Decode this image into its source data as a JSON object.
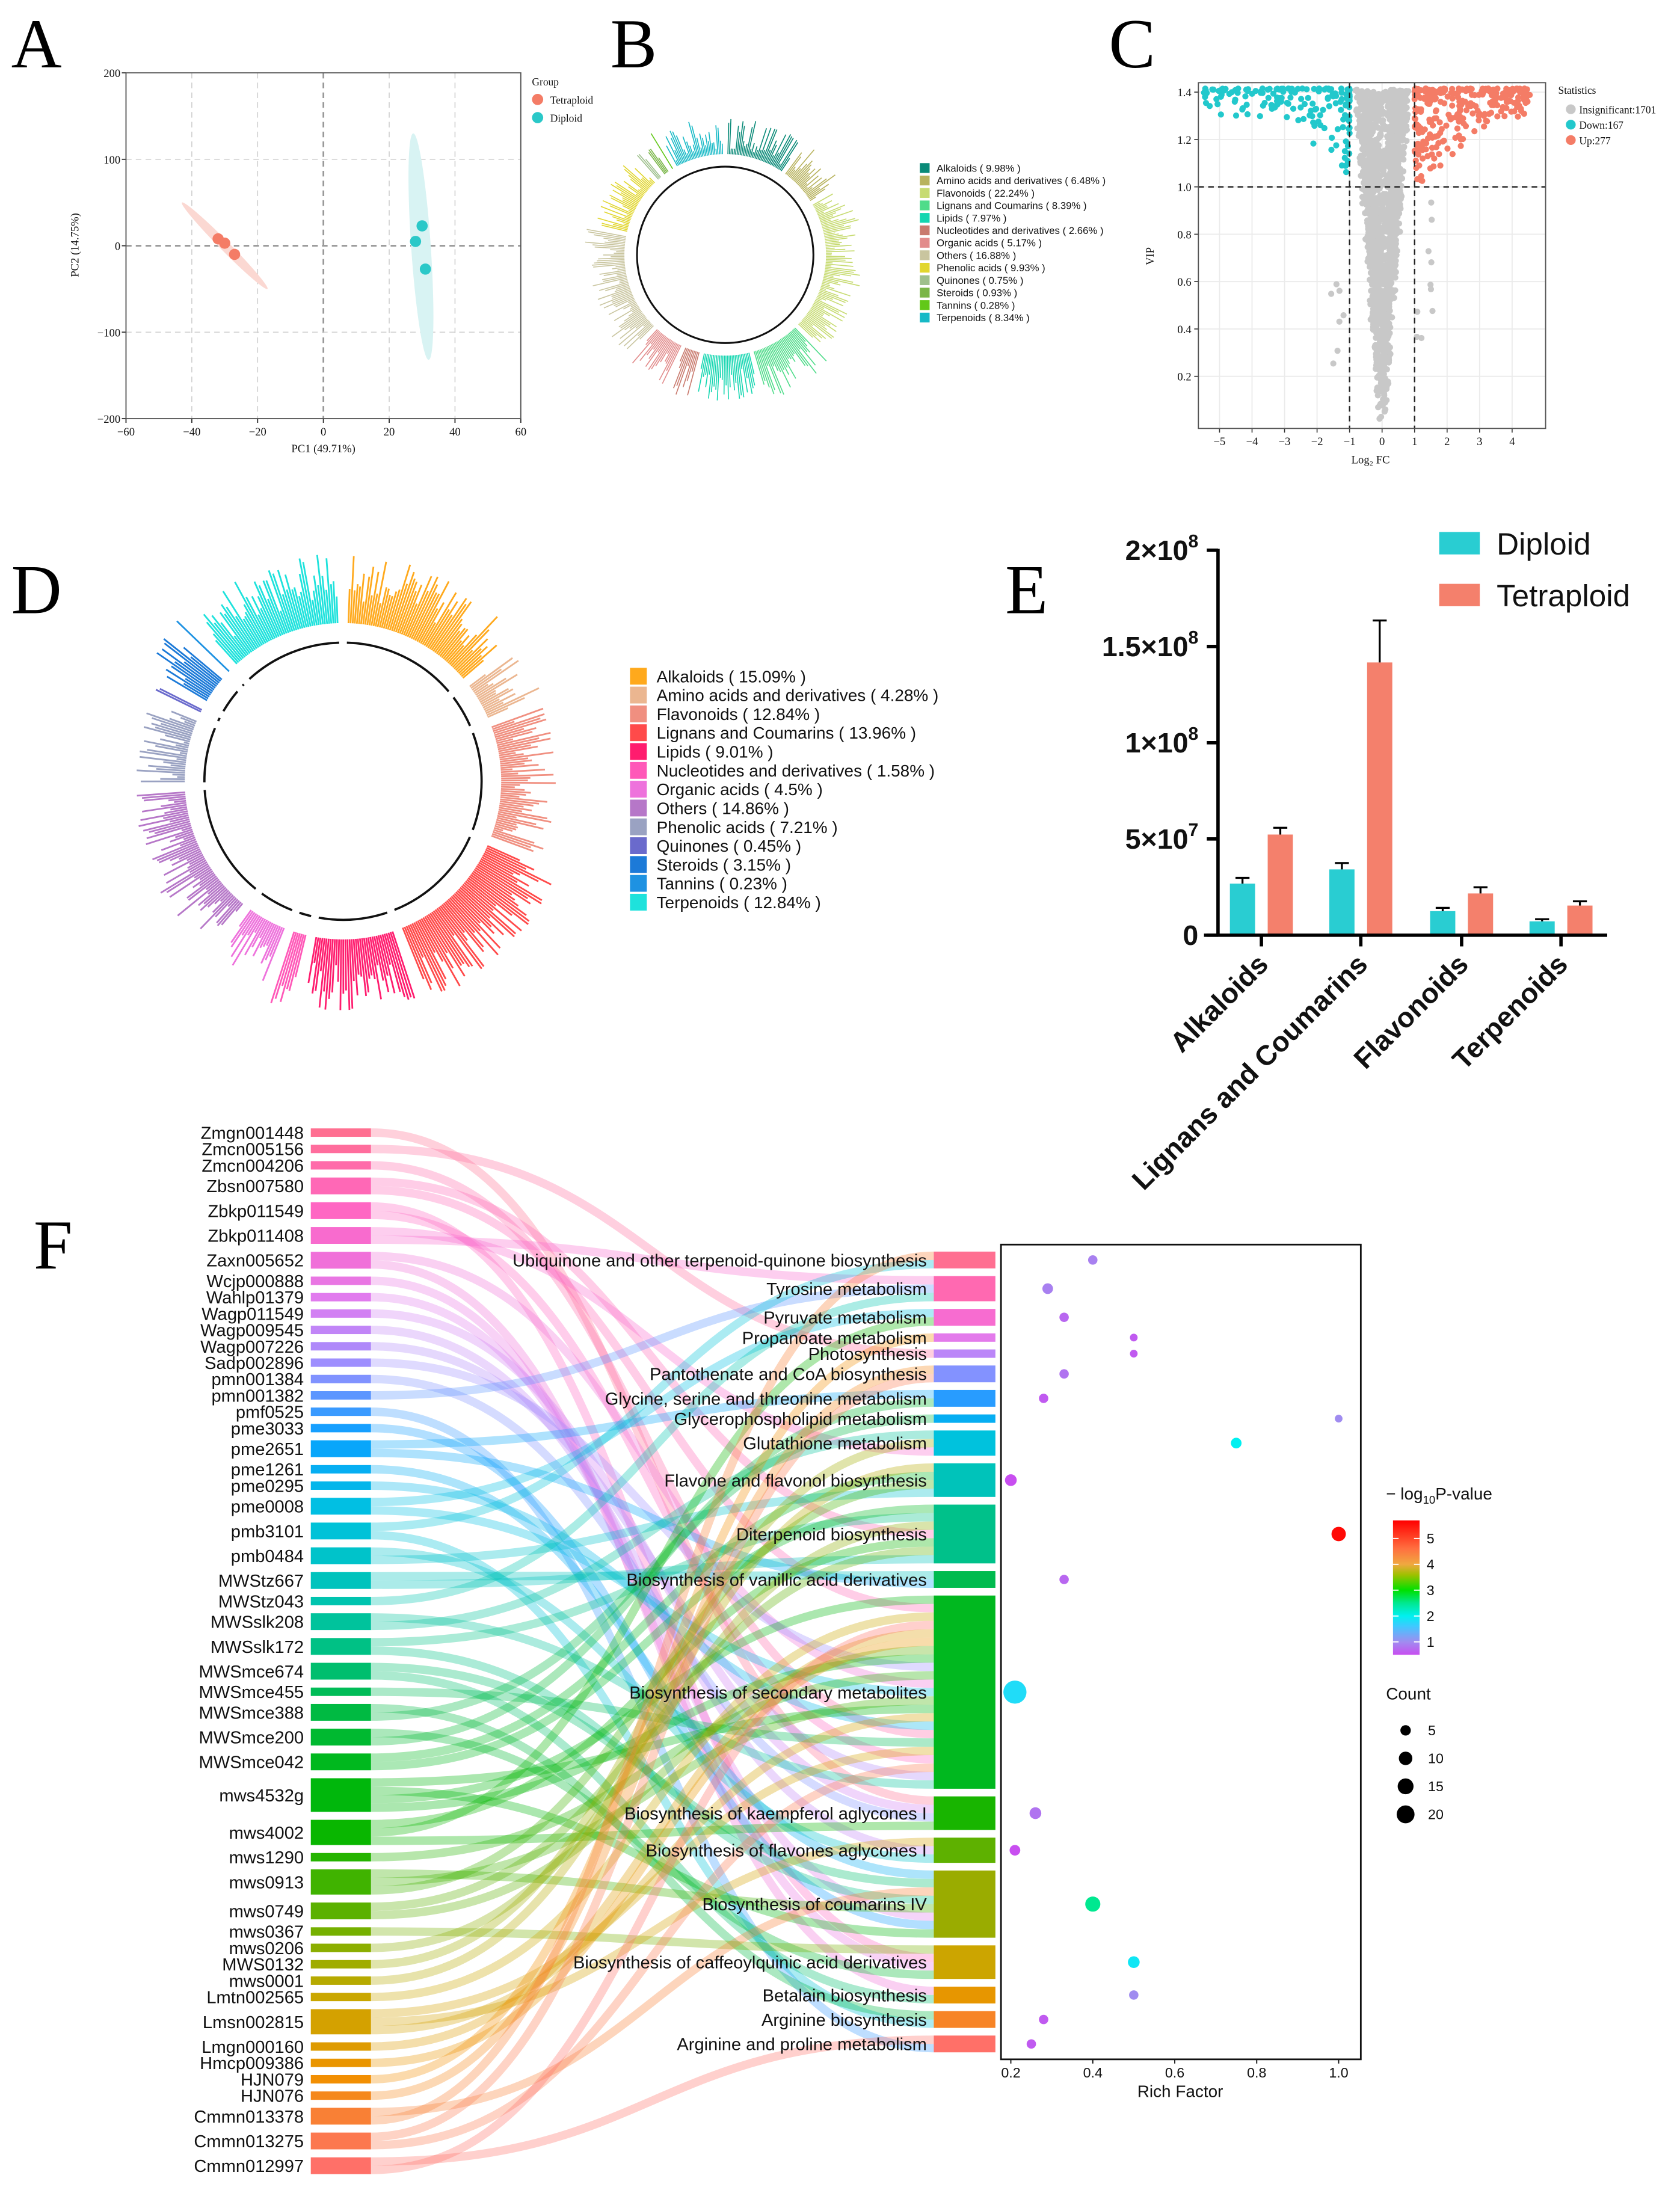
{
  "panels": {
    "a": "A",
    "b": "B",
    "c": "C",
    "d": "D",
    "e": "E",
    "f": "F"
  },
  "chart_data": [
    {
      "type": "scatter",
      "title": "",
      "xlabel": "PC1 (49.71%)",
      "ylabel": "PC2 (14.75%)",
      "xlim": [
        -60,
        60
      ],
      "ylim": [
        -200,
        200
      ],
      "xticks": [
        -60,
        -40,
        -20,
        0,
        20,
        40,
        60
      ],
      "xtick_labels": [
        "−60",
        "−40",
        "−20",
        "0",
        "20",
        "40",
        "60"
      ],
      "yticks": [
        200,
        100,
        0,
        -100,
        -200
      ],
      "ytick_labels": [
        "200",
        "100",
        "0",
        "−100",
        "−200"
      ],
      "grid": true,
      "legend_title": "Group",
      "legend_placement": "right",
      "series": [
        {
          "name": "Tetraploid",
          "color": "#f47c66",
          "points": [
            [
              -32,
              8
            ],
            [
              -30,
              3
            ],
            [
              -27,
              -10
            ]
          ]
        },
        {
          "name": "Diploid",
          "color": "#2ac8c8",
          "points": [
            [
              30,
              23
            ],
            [
              28,
              5
            ],
            [
              31,
              -27
            ]
          ]
        }
      ]
    },
    {
      "type": "bar",
      "subtype": "circular",
      "categories": [
        "Alkaloids",
        "Amino acids and derivatives",
        "Flavonoids",
        "Lignans and Coumarins",
        "Lipids",
        "Nucleotides and derivatives",
        "Organic acids",
        "Others",
        "Phenolic acids",
        "Quinones",
        "Steroids",
        "Tannins",
        "Terpenoids"
      ],
      "values": [
        9.98,
        6.48,
        22.24,
        8.39,
        7.97,
        2.66,
        5.17,
        16.88,
        9.93,
        0.75,
        0.93,
        0.28,
        8.34
      ],
      "labels": [
        "Alkaloids  ( 9.98% )",
        "Amino acids and derivatives  ( 6.48% )",
        "Flavonoids  ( 22.24% )",
        "Lignans and Coumarins  ( 8.39% )",
        "Lipids  ( 7.97% )",
        "Nucleotides and derivatives  ( 2.66% )",
        "Organic acids  ( 5.17% )",
        "Others  ( 16.88% )",
        "Phenolic acids  ( 9.93% )",
        "Quinones  ( 0.75% )",
        "Steroids  ( 0.93% )",
        "Tannins  ( 0.28% )",
        "Terpenoids  ( 8.34% )"
      ],
      "colors": [
        "#0a8a78",
        "#b8b35e",
        "#c7db72",
        "#4fdc8a",
        "#14d6b0",
        "#c97a6e",
        "#e28c8c",
        "#c9c59f",
        "#e1d62e",
        "#9ec08c",
        "#7ab648",
        "#62c818",
        "#16b9c6"
      ],
      "legend_placement": "right"
    },
    {
      "type": "scatter",
      "subtype": "volcano",
      "xlabel": "Log₂ FC",
      "ylabel": "VIP",
      "xlim": [
        -5.65,
        5.03
      ],
      "ylim": [
        -0.02,
        1.44
      ],
      "xticks": [
        -5,
        -4,
        -3,
        -2,
        -1,
        0,
        1,
        2,
        3,
        4
      ],
      "xtick_labels": [
        "−5",
        "−4",
        "−3",
        "−2",
        "−1",
        "0",
        "1",
        "2",
        "3",
        "4"
      ],
      "yticks": [
        0.2,
        0.4,
        0.6,
        0.8,
        1.0,
        1.2,
        1.4
      ],
      "ytick_labels": [
        "0.2",
        "0.4",
        "0.6",
        "0.8",
        "1.0",
        "1.2",
        "1.4"
      ],
      "thresholds": {
        "log2fc": [
          -1,
          1
        ],
        "vip": 1.0
      },
      "grid": true,
      "legend_title": "Statistics",
      "legend_placement": "right",
      "series": [
        {
          "name": "Insignificant",
          "label": "Insignificant:1701",
          "count": 1701,
          "color": "#c8c8c8"
        },
        {
          "name": "Down",
          "label": "Down:167",
          "count": 167,
          "color": "#22c8cc"
        },
        {
          "name": "Up",
          "label": "Up:277",
          "count": 277,
          "color": "#f47c66"
        }
      ]
    },
    {
      "type": "bar",
      "subtype": "circular",
      "categories": [
        "Alkaloids",
        "Amino acids and derivatives",
        "Flavonoids",
        "Lignans and Coumarins",
        "Lipids",
        "Nucleotides and derivatives",
        "Organic acids",
        "Others",
        "Phenolic acids",
        "Quinones",
        "Steroids",
        "Tannins",
        "Terpenoids"
      ],
      "values": [
        15.09,
        4.28,
        12.84,
        13.96,
        9.01,
        1.58,
        4.5,
        14.86,
        7.21,
        0.45,
        3.15,
        0.23,
        12.84
      ],
      "labels": [
        "Alkaloids  ( 15.09% )",
        "Amino acids and derivatives  ( 4.28% )",
        "Flavonoids  ( 12.84% )",
        "Lignans and Coumarins  ( 13.96% )",
        "Lipids  ( 9.01% )",
        "Nucleotides and derivatives  ( 1.58% )",
        "Organic acids  ( 4.5% )",
        "Others  ( 14.86% )",
        "Phenolic acids  ( 7.21% )",
        "Quinones  ( 0.45% )",
        "Steroids  ( 3.15% )",
        "Tannins  ( 0.23% )",
        "Terpenoids  ( 12.84% )"
      ],
      "colors": [
        "#ffa91c",
        "#ebb690",
        "#f08f80",
        "#ff4a4a",
        "#ff1c6e",
        "#ff58b8",
        "#ee72dc",
        "#b677c8",
        "#9aa2c2",
        "#6a6acc",
        "#1c7ad8",
        "#1e92e2",
        "#1ee2dc"
      ],
      "legend_placement": "right"
    },
    {
      "type": "bar",
      "categories": [
        "Alkaloids",
        "Lignans and Coumarins",
        "Flavonoids",
        "Terpenoids"
      ],
      "series": [
        {
          "name": "Diploid",
          "color": "#29cdd2",
          "values": [
            26800000,
            34200000,
            12500000,
            7200000
          ],
          "errors": [
            3000000,
            3300000,
            1700000,
            1100000
          ]
        },
        {
          "name": "Tetraploid",
          "color": "#f4806c",
          "values": [
            52300000,
            141700000,
            21700000,
            15400000
          ],
          "errors": [
            3500000,
            21800000,
            3200000,
            2200000
          ]
        }
      ],
      "ylim": [
        0,
        200000000
      ],
      "yticks": [
        0,
        50000000,
        100000000,
        150000000,
        200000000
      ],
      "ytick_labels": [
        {
          "base": "0",
          "exp": ""
        },
        {
          "base": "5×10",
          "exp": "7"
        },
        {
          "base": "1×10",
          "exp": "8"
        },
        {
          "base": "1.5×10",
          "exp": "8"
        },
        {
          "base": "2×10",
          "exp": "8"
        }
      ],
      "xlabel": "",
      "ylabel": "",
      "legend_placement": "top-right"
    },
    {
      "type": "scatter",
      "subtype": "sankey-bubble",
      "xlabel": "Rich Factor",
      "xlim": [
        0.176,
        1.054
      ],
      "xticks": [
        0.2,
        0.4,
        0.6,
        0.8,
        1.0
      ],
      "xtick_labels": [
        "0.2",
        "0.4",
        "0.6",
        "0.8",
        "1.0"
      ],
      "color_legend": {
        "prefix": "− log",
        "sub": "10",
        "suffix": "P-value",
        "ticks": [
          1,
          2,
          3,
          4,
          5
        ],
        "tick_labels": [
          "1",
          "2",
          "3",
          "4",
          "5"
        ],
        "range": [
          0.5,
          5.7
        ],
        "stops": [
          [
            0.5,
            "#c84ef0"
          ],
          [
            1.0,
            "#a08cf0"
          ],
          [
            1.6,
            "#40c8ff"
          ],
          [
            2.0,
            "#00f0f0"
          ],
          [
            2.5,
            "#00e890"
          ],
          [
            3.0,
            "#00e000"
          ],
          [
            3.6,
            "#a0c000"
          ],
          [
            4.0,
            "#f0a840"
          ],
          [
            4.6,
            "#ff7040"
          ],
          [
            5.7,
            "#ff0000"
          ]
        ]
      },
      "size_legend": {
        "title": "Count",
        "values": [
          5,
          10,
          15,
          20
        ],
        "labels": [
          "5",
          "10",
          "15",
          "20"
        ]
      },
      "compounds": [
        {
          "name": "Zmgn001448",
          "links": 1
        },
        {
          "name": "Zmcn005156",
          "links": 1
        },
        {
          "name": "Zmcn004206",
          "links": 1
        },
        {
          "name": "Zbsn007580",
          "links": 2
        },
        {
          "name": "Zbkp011549",
          "links": 2
        },
        {
          "name": "Zbkp011408",
          "links": 2
        },
        {
          "name": "Zaxn005652",
          "links": 2
        },
        {
          "name": "Wcjp000888",
          "links": 1
        },
        {
          "name": "Wahlp01379",
          "links": 1
        },
        {
          "name": "Wagp011549",
          "links": 1
        },
        {
          "name": "Wagp009545",
          "links": 1
        },
        {
          "name": "Wagp007226",
          "links": 1
        },
        {
          "name": "Sadp002896",
          "links": 1
        },
        {
          "name": "pmn001384",
          "links": 1
        },
        {
          "name": "pmn001382",
          "links": 1
        },
        {
          "name": "pmf0525",
          "links": 1
        },
        {
          "name": "pme3033",
          "links": 1
        },
        {
          "name": "pme2651",
          "links": 2
        },
        {
          "name": "pme1261",
          "links": 1
        },
        {
          "name": "pme0295",
          "links": 1
        },
        {
          "name": "pme0008",
          "links": 2
        },
        {
          "name": "pmb3101",
          "links": 2
        },
        {
          "name": "pmb0484",
          "links": 2
        },
        {
          "name": "MWStz667",
          "links": 2
        },
        {
          "name": "MWStz043",
          "links": 1
        },
        {
          "name": "MWSslk208",
          "links": 2
        },
        {
          "name": "MWSslk172",
          "links": 2
        },
        {
          "name": "MWSmce674",
          "links": 2
        },
        {
          "name": "MWSmce455",
          "links": 1
        },
        {
          "name": "MWSmce388",
          "links": 2
        },
        {
          "name": "MWSmce200",
          "links": 2
        },
        {
          "name": "MWSmce042",
          "links": 2
        },
        {
          "name": "mws4532g",
          "links": 4
        },
        {
          "name": "mws4002",
          "links": 3
        },
        {
          "name": "mws1290",
          "links": 1
        },
        {
          "name": "mws0913",
          "links": 3
        },
        {
          "name": "mws0749",
          "links": 2
        },
        {
          "name": "mws0367",
          "links": 1
        },
        {
          "name": "mws0206",
          "links": 1
        },
        {
          "name": "MWS0132",
          "links": 1
        },
        {
          "name": "mws0001",
          "links": 1
        },
        {
          "name": "Lmtn002565",
          "links": 1
        },
        {
          "name": "Lmsn002815",
          "links": 3
        },
        {
          "name": "Lmgn000160",
          "links": 1
        },
        {
          "name": "Hmcp009386",
          "links": 1
        },
        {
          "name": "HJN079",
          "links": 1
        },
        {
          "name": "HJN076",
          "links": 1
        },
        {
          "name": "Cmmn013378",
          "links": 2
        },
        {
          "name": "Cmmn013275",
          "links": 2
        },
        {
          "name": "Cmmn012997",
          "links": 2
        }
      ],
      "pathways": [
        {
          "name": "Ubiquinone and other terpenoid-quinone biosynthesis",
          "count": 2,
          "rich_factor": 0.4,
          "neglog10p": 0.9
        },
        {
          "name": "Tyrosine metabolism",
          "count": 3,
          "rich_factor": 0.29,
          "neglog10p": 0.9
        },
        {
          "name": "Pyruvate metabolism",
          "count": 2,
          "rich_factor": 0.33,
          "neglog10p": 0.7
        },
        {
          "name": "Propanoate metabolism",
          "count": 1,
          "rich_factor": 0.5,
          "neglog10p": 0.6
        },
        {
          "name": "Photosynthesis",
          "count": 1,
          "rich_factor": 0.5,
          "neglog10p": 0.6
        },
        {
          "name": "Pantothenate and CoA biosynthesis",
          "count": 2,
          "rich_factor": 0.33,
          "neglog10p": 0.8
        },
        {
          "name": "Glycine, serine and threonine metabolism",
          "count": 2,
          "rich_factor": 0.28,
          "neglog10p": 0.6
        },
        {
          "name": "Glycerophospholipid metabolism",
          "count": 1,
          "rich_factor": 1.0,
          "neglog10p": 1.0
        },
        {
          "name": "Glutathione metabolism",
          "count": 3,
          "rich_factor": 0.75,
          "neglog10p": 2.0
        },
        {
          "name": "Flavone and flavonol biosynthesis",
          "count": 4,
          "rich_factor": 0.2,
          "neglog10p": 0.5
        },
        {
          "name": "Diterpenoid biosynthesis",
          "count": 7,
          "rich_factor": 1.0,
          "neglog10p": 5.6
        },
        {
          "name": "Biosynthesis of vanillic acid derivatives",
          "count": 2,
          "rich_factor": 0.33,
          "neglog10p": 0.7
        },
        {
          "name": "Biosynthesis of secondary metabolites",
          "count": 23,
          "rich_factor": 0.21,
          "neglog10p": 1.8
        },
        {
          "name": "Biosynthesis of kaempferol aglycones I",
          "count": 4,
          "rich_factor": 0.26,
          "neglog10p": 0.8
        },
        {
          "name": "Biosynthesis of flavones aglycones I",
          "count": 3,
          "rich_factor": 0.21,
          "neglog10p": 0.5
        },
        {
          "name": "Biosynthesis of coumarins IV",
          "count": 8,
          "rich_factor": 0.4,
          "neglog10p": 2.5
        },
        {
          "name": "Biosynthesis of caffeoylquinic acid derivatives",
          "count": 4,
          "rich_factor": 0.5,
          "neglog10p": 1.9
        },
        {
          "name": "Betalain biosynthesis",
          "count": 2,
          "rich_factor": 0.5,
          "neglog10p": 1.0
        },
        {
          "name": "Arginine biosynthesis",
          "count": 2,
          "rich_factor": 0.28,
          "neglog10p": 0.6
        },
        {
          "name": "Arginine and proline metabolism",
          "count": 2,
          "rich_factor": 0.25,
          "neglog10p": 0.6
        }
      ],
      "palette": [
        "#ff6f91",
        "#ff66c4",
        "#e07cf0",
        "#9a8fff",
        "#0aa0ff",
        "#00c2e0",
        "#00c4a8",
        "#00bb4a",
        "#00b600",
        "#70b000",
        "#c8a800",
        "#f29000",
        "#ff7068"
      ]
    }
  ]
}
